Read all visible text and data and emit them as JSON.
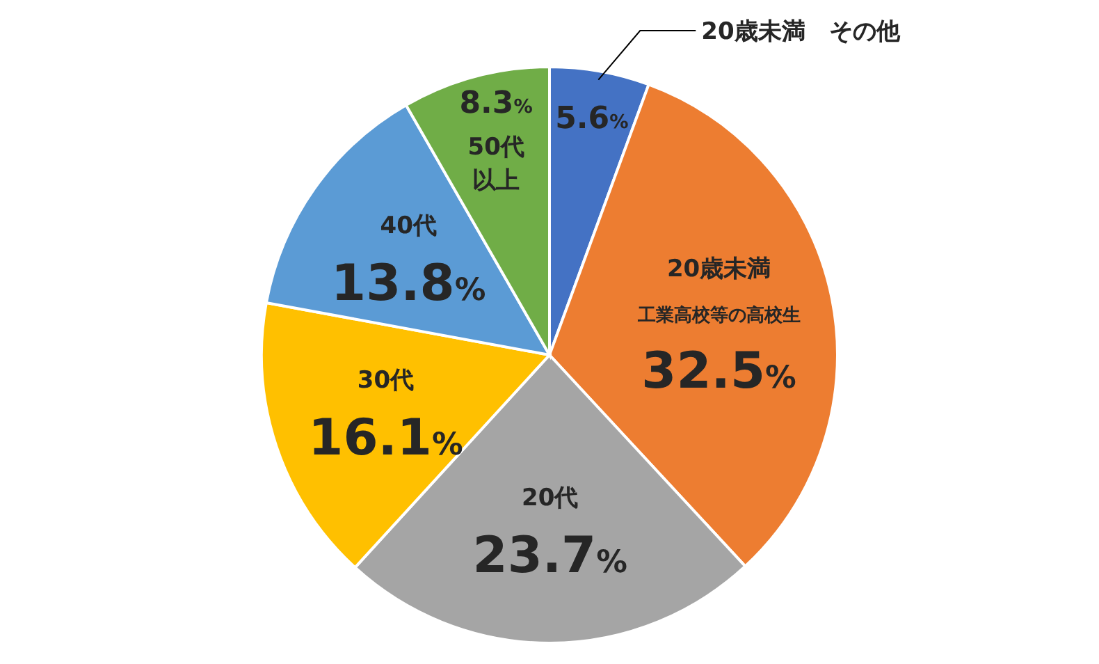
{
  "chart_data": {
    "type": "pie",
    "categories": [
      "20歳未満　その他",
      "20歳未満",
      "20代",
      "30代",
      "40代",
      "50代以上"
    ],
    "values": [
      5.6,
      32.5,
      23.7,
      16.1,
      13.8,
      8.3
    ],
    "value_labels": [
      "5.6%",
      "32.5%",
      "23.7%",
      "16.1%",
      "13.8%",
      "8.3%"
    ],
    "colors": [
      "#4472c4",
      "#ed7d31",
      "#a5a5a5",
      "#ffc000",
      "#5b9bd5",
      "#70ad47"
    ],
    "annotations": [
      "工業高校等の高校生"
    ]
  }
}
